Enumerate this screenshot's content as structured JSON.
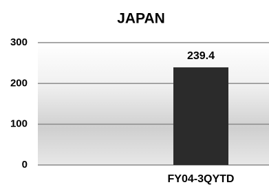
{
  "chart_data": {
    "type": "bar",
    "title": "JAPAN",
    "categories": [
      "FY04-3QYTD"
    ],
    "values": [
      239.4
    ],
    "color": "#2b2b2b",
    "ylim": [
      0,
      300
    ],
    "yticks": [
      0,
      100,
      200,
      300
    ],
    "grid": true
  }
}
